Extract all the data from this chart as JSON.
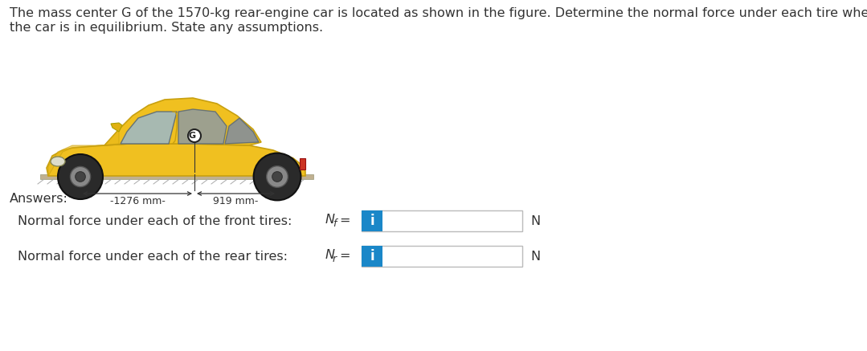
{
  "title_line1": "The mass center G of the 1570-kg rear-engine car is located as shown in the figure. Determine the normal force under each tire when",
  "title_line2": "the car is in equilibrium. State any assumptions.",
  "answers_label": "Answers:",
  "line1_label": "Normal force under each of the front tires:",
  "line1_unit": "N",
  "line2_label": "Normal force under each of the rear tires:",
  "line2_unit": "N",
  "dim1": "-1276 mm-",
  "dim2": "919 mm-",
  "background_color": "#f2f2f2",
  "white_color": "#ffffff",
  "box_border_color": "#bbbbbb",
  "box_fill_color": "#ffffff",
  "blue_tab_color": "#1a87c8",
  "text_color": "#333333",
  "label_fontsize": 11.5,
  "title_fontsize": 11.5,
  "car_yellow": "#f0c020",
  "car_yellow_dark": "#c8a010",
  "car_body_gray": "#888888",
  "car_tire_dark": "#222222",
  "car_window": "#8899aa",
  "ground_color": "#c0b090",
  "dim_line_color": "#333333"
}
